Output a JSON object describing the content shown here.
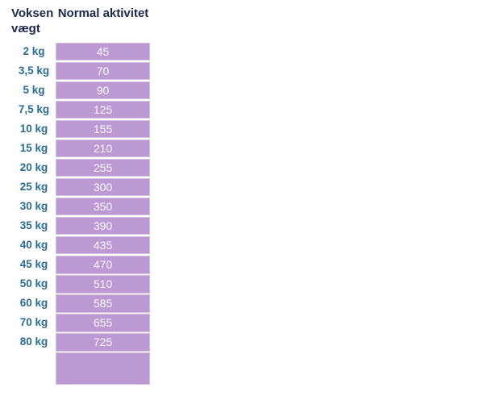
{
  "table": {
    "col1_header": "Voksen\nvægt",
    "col2_header": "Normal aktivitet",
    "rows": [
      {
        "weight": "2 kg",
        "value": "45"
      },
      {
        "weight": "3,5 kg",
        "value": "70"
      },
      {
        "weight": "5 kg",
        "value": "90"
      },
      {
        "weight": "7,5 kg",
        "value": "125"
      },
      {
        "weight": "10 kg",
        "value": "155"
      },
      {
        "weight": "15 kg",
        "value": "210"
      },
      {
        "weight": "20 kg",
        "value": "255"
      },
      {
        "weight": "25 kg",
        "value": "300"
      },
      {
        "weight": "30 kg",
        "value": "350"
      },
      {
        "weight": "35 kg",
        "value": "390"
      },
      {
        "weight": "40 kg",
        "value": "435"
      },
      {
        "weight": "45 kg",
        "value": "470"
      },
      {
        "weight": "50 kg",
        "value": "510"
      },
      {
        "weight": "60 kg",
        "value": "585"
      },
      {
        "weight": "70 kg",
        "value": "655"
      },
      {
        "weight": "80 kg",
        "value": "725"
      }
    ],
    "footer_value": ""
  },
  "chart_data": {
    "type": "table",
    "title": "",
    "columns": [
      "Voksen vægt",
      "Normal aktivitet"
    ],
    "rows": [
      [
        "2 kg",
        45
      ],
      [
        "3,5 kg",
        70
      ],
      [
        "5 kg",
        90
      ],
      [
        "7,5 kg",
        125
      ],
      [
        "10 kg",
        155
      ],
      [
        "15 kg",
        210
      ],
      [
        "20 kg",
        255
      ],
      [
        "25 kg",
        300
      ],
      [
        "30 kg",
        350
      ],
      [
        "35 kg",
        390
      ],
      [
        "40 kg",
        435
      ],
      [
        "45 kg",
        470
      ],
      [
        "50 kg",
        510
      ],
      [
        "60 kg",
        585
      ],
      [
        "70 kg",
        655
      ],
      [
        "80 kg",
        725
      ]
    ],
    "layout": "value cells filled lavender, white centered numbers, empty lavender cell appended below last row"
  },
  "colors": {
    "cell_purple": "#bd99d3",
    "label_blue": "#276b99",
    "header_navy": "#1b2a4c",
    "background": "#ffffff"
  }
}
